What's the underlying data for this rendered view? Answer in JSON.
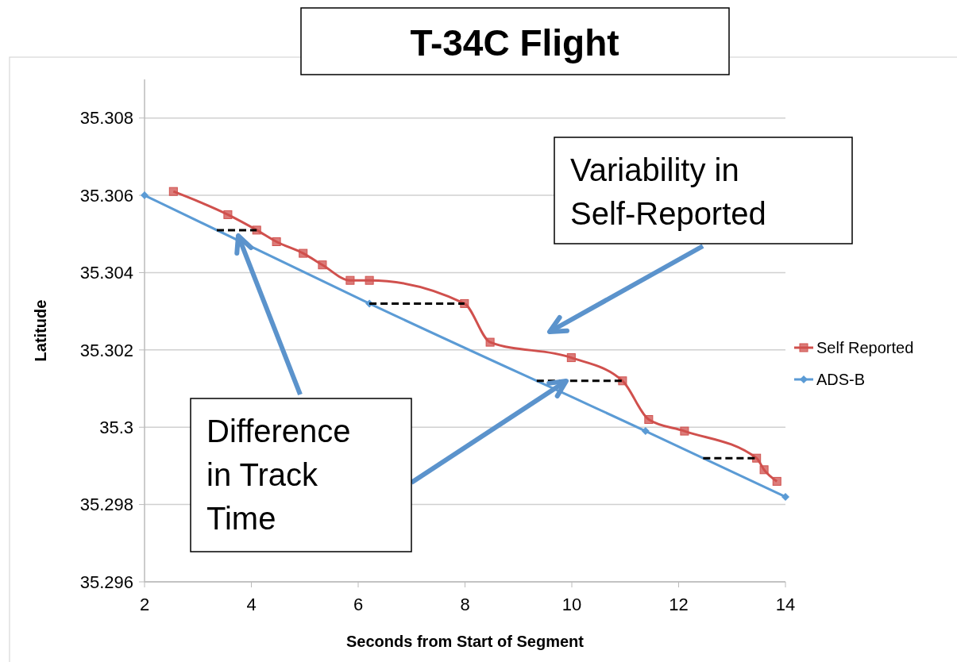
{
  "chart_data": {
    "type": "line",
    "title": "T-34C Flight",
    "xlabel": "Seconds from Start of Segment",
    "ylabel": "Latitude",
    "xlim": [
      2,
      14
    ],
    "xticks": [
      2,
      4,
      6,
      8,
      10,
      12,
      14
    ],
    "ylim": [
      35.296,
      35.309
    ],
    "yticks": [
      35.296,
      35.298,
      {
        "value": 35.3,
        "label": "35.3"
      },
      35.302,
      35.304,
      35.306,
      35.308
    ],
    "grid": "y",
    "legend": "right",
    "line_style": "solid",
    "series": [
      {
        "name": "Self Reported",
        "color": "#d0504d",
        "marker": "square",
        "x": [
          2.54,
          3.56,
          4.1,
          4.47,
          4.97,
          5.33,
          5.85,
          6.21,
          7.99,
          8.47,
          9.99,
          10.95,
          11.44,
          12.11,
          13.46,
          13.6,
          13.84
        ],
        "values": [
          35.3061,
          35.3055,
          35.3051,
          35.3048,
          35.3045,
          35.3042,
          35.3038,
          35.3038,
          35.3032,
          35.3022,
          35.3018,
          35.3012,
          35.3002,
          35.2999,
          35.2992,
          35.2989,
          35.2986
        ]
      },
      {
        "name": "ADS-B",
        "color": "#5b9bd5",
        "marker": "diamond",
        "x": [
          2,
          6.21,
          11.38,
          14
        ],
        "values": [
          35.306,
          35.3032,
          35.2999,
          35.2982
        ]
      }
    ],
    "annotations": [
      "Variability in Self-Reported",
      "Difference in Track Time"
    ]
  }
}
